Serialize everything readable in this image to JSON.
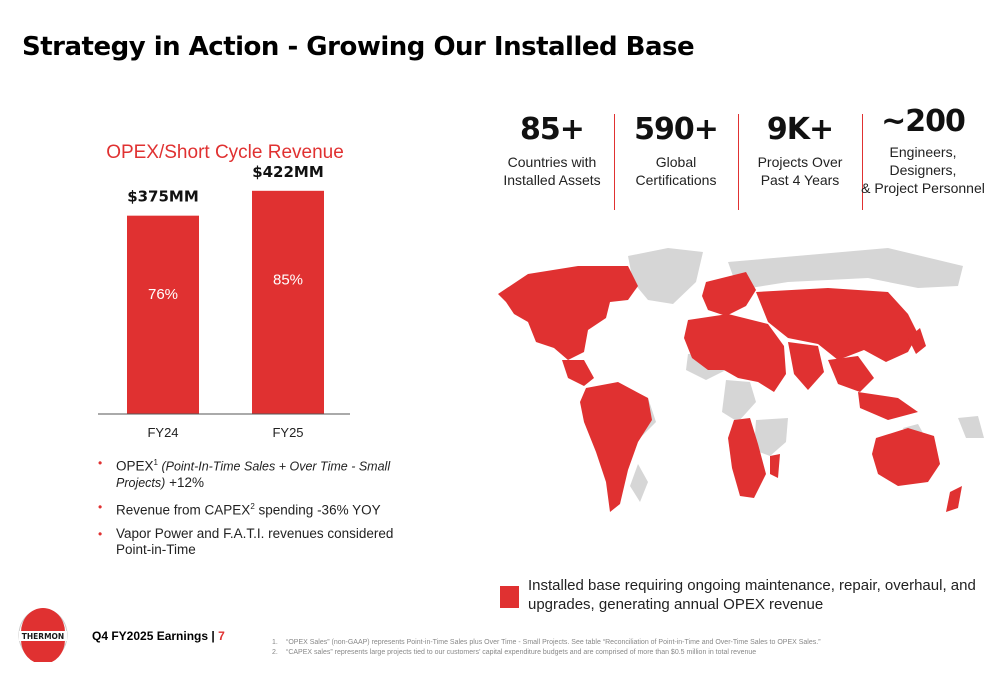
{
  "title": "Strategy in Action - Growing Our Installed Base",
  "chart_data": {
    "type": "bar",
    "title": "OPEX/Short Cycle Revenue",
    "categories": [
      "FY24",
      "FY25"
    ],
    "values": [
      375,
      422
    ],
    "value_labels": [
      "$375MM",
      "$422MM"
    ],
    "inner_labels": [
      "76%",
      "85%"
    ],
    "ylim": [
      0,
      450
    ],
    "color": "#e03131",
    "grid": false
  },
  "bullets": [
    {
      "pre": "OPEX",
      "sup": "1",
      "em": " (Point-In-Time Sales + Over Time - Small Projects)",
      "post": " +12%"
    },
    {
      "pre": "Revenue from CAPEX",
      "sup": "2",
      "em": "",
      "post": " spending -36% YOY"
    },
    {
      "pre": "Vapor Power and F.A.T.I. revenues considered Point-in-Time",
      "sup": "",
      "em": "",
      "post": ""
    }
  ],
  "stats": [
    {
      "value": "85+",
      "label1": "Countries with",
      "label2": "Installed Assets",
      "label3": ""
    },
    {
      "value": "590+",
      "label1": "Global",
      "label2": "Certifications",
      "label3": ""
    },
    {
      "value": "9K+",
      "label1": "Projects Over",
      "label2": "Past 4 Years",
      "label3": ""
    },
    {
      "value": "~200",
      "label1": "Engineers,",
      "label2": "Designers,",
      "label3": "& Project Personnel"
    }
  ],
  "legend": "Installed base requiring ongoing maintenance, repair, overhaul, and upgrades, generating annual OPEX revenue",
  "footer": {
    "brand": "THERMON",
    "earnings": "Q4 FY2025 Earnings |",
    "page": "7",
    "footnotes": [
      {
        "num": "1.",
        "text": "“OPEX Sales” (non-GAAP) represents Point-in-Time Sales plus Over Time - Small Projects. See table “Reconciliation of Point-in-Time and Over-Time Sales to OPEX Sales.”"
      },
      {
        "num": "2.",
        "text": "“CAPEX sales” represents large projects tied to our customers’ capital expenditure budgets and are comprised of more than $0.5 million in total revenue"
      }
    ]
  },
  "colors": {
    "accent": "#e03131",
    "map_gray": "#d6d6d6"
  }
}
